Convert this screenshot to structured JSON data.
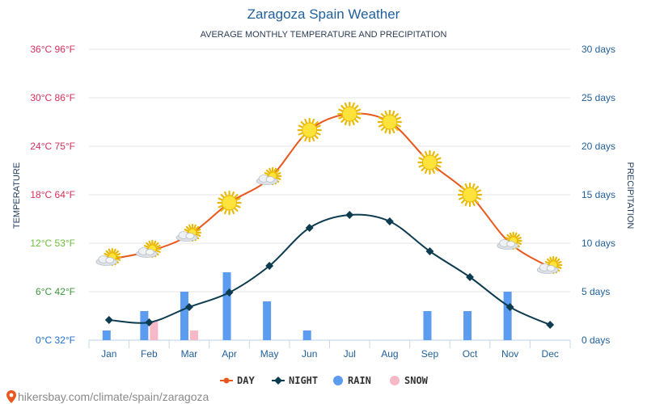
{
  "chart_data": {
    "type": "line",
    "title": "Zaragoza Spain Weather",
    "subtitle": "AVERAGE MONTHLY TEMPERATURE AND PRECIPITATION",
    "categories": [
      "Jan",
      "Feb",
      "Mar",
      "Apr",
      "May",
      "Jun",
      "Jul",
      "Aug",
      "Sep",
      "Oct",
      "Nov",
      "Dec"
    ],
    "series": [
      {
        "name": "DAY",
        "type": "line",
        "color": "#e8581c",
        "unit": "°C",
        "values": [
          10,
          11,
          13,
          17,
          20,
          26,
          28,
          27,
          22,
          18,
          12,
          9
        ],
        "icons": [
          "partly-cloudy",
          "partly-cloudy",
          "partly-cloudy",
          "sun",
          "partly-cloudy",
          "sun",
          "sun",
          "sun",
          "sun",
          "sun",
          "partly-cloudy",
          "partly-cloudy"
        ]
      },
      {
        "name": "NIGHT",
        "type": "line",
        "color": "#0d3b4f",
        "unit": "°C",
        "values": [
          2.5,
          2.2,
          4.1,
          5.9,
          9.2,
          13.9,
          15.5,
          14.7,
          11,
          7.8,
          4.1,
          1.9
        ]
      },
      {
        "name": "RAIN",
        "type": "bar",
        "color": "#5b9bf0",
        "unit": "days",
        "values": [
          1,
          3,
          5,
          7,
          4,
          1,
          0,
          0,
          3,
          3,
          5,
          0
        ]
      },
      {
        "name": "SNOW",
        "type": "bar",
        "color": "#f7b9c8",
        "unit": "days",
        "values": [
          0,
          2,
          1,
          0,
          0,
          0,
          0,
          0,
          0,
          0,
          0,
          0
        ]
      }
    ],
    "y_left": {
      "title": "TEMPERATURE",
      "range": [
        0,
        36
      ],
      "ticks": [
        {
          "value": 0,
          "label": "0°C 32°F",
          "color": "#1f6fd0"
        },
        {
          "value": 6,
          "label": "6°C 42°F",
          "color": "#3a9a3a"
        },
        {
          "value": 12,
          "label": "12°C 53°F",
          "color": "#6abf3a"
        },
        {
          "value": 18,
          "label": "18°C 64°F",
          "color": "#d6305e"
        },
        {
          "value": 24,
          "label": "24°C 75°F",
          "color": "#d6305e"
        },
        {
          "value": 30,
          "label": "30°C 86°F",
          "color": "#d6305e"
        },
        {
          "value": 36,
          "label": "36°C 96°F",
          "color": "#d6305e"
        }
      ]
    },
    "y_right": {
      "title": "PRECIPITATION",
      "range": [
        0,
        30
      ],
      "ticks": [
        {
          "value": 0,
          "label": "0 days"
        },
        {
          "value": 5,
          "label": "5 days"
        },
        {
          "value": 10,
          "label": "10 days"
        },
        {
          "value": 15,
          "label": "15 days"
        },
        {
          "value": 20,
          "label": "20 days"
        },
        {
          "value": 25,
          "label": "25 days"
        },
        {
          "value": 30,
          "label": "30 days"
        }
      ],
      "color": "#1f5f9a"
    },
    "grid": true,
    "legend": {
      "position": "bottom"
    }
  },
  "footer": {
    "text": "hikersbay.com/climate/spain/zaragoza"
  }
}
